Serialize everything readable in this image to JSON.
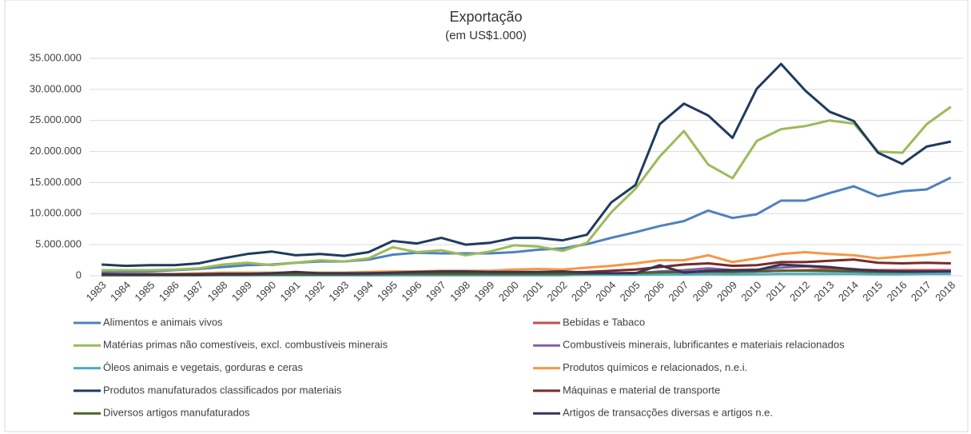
{
  "chart_data": {
    "type": "line",
    "title": "Exportação",
    "subtitle": "(em US$1.000)",
    "categories": [
      "1983",
      "1984",
      "1985",
      "1986",
      "1987",
      "1988",
      "1989",
      "1990",
      "1991",
      "1992",
      "1993",
      "1994",
      "1995",
      "1996",
      "1997",
      "1998",
      "1999",
      "2000",
      "2001",
      "2002",
      "2003",
      "2004",
      "2005",
      "2006",
      "2007",
      "2008",
      "2009",
      "2010",
      "2011",
      "2012",
      "2013",
      "2014",
      "2015",
      "2016",
      "2017",
      "2018"
    ],
    "ylim": [
      0,
      35000000
    ],
    "yticks": [
      0,
      {
        "value": 5000000,
        "label": "5.000.000"
      },
      {
        "value": 10000000,
        "label": "10.000.000"
      },
      {
        "value": 15000000,
        "label": "15.000.000"
      },
      {
        "value": 20000000,
        "label": "20.000.000"
      },
      {
        "value": 25000000,
        "label": "25.000.000"
      },
      {
        "value": 30000000,
        "label": "30.000.000"
      },
      {
        "value": 35000000,
        "label": "35.000.000"
      }
    ],
    "grid": true,
    "legend": "bottom",
    "series": [
      {
        "name": "Alimentos e animais vivos",
        "color": "#4f81bd",
        "values": [
          600000,
          600000,
          700000,
          900000,
          1100000,
          1400000,
          1700000,
          1800000,
          2100000,
          2300000,
          2300000,
          2600000,
          3400000,
          3700000,
          3600000,
          3600000,
          3600000,
          3800000,
          4200000,
          4400000,
          5100000,
          6100000,
          7000000,
          8000000,
          8800000,
          10500000,
          9300000,
          9900000,
          12100000,
          12100000,
          13300000,
          14400000,
          12800000,
          13600000,
          13900000,
          15800000
        ]
      },
      {
        "name": "Bebidas e Tabaco",
        "color": "#c0504d",
        "values": [
          150000,
          150000,
          150000,
          160000,
          180000,
          200000,
          200000,
          200000,
          250000,
          300000,
          300000,
          300000,
          350000,
          350000,
          350000,
          300000,
          300000,
          300000,
          300000,
          300000,
          300000,
          350000,
          400000,
          450000,
          500000,
          600000,
          600000,
          700000,
          800000,
          900000,
          1000000,
          1000000,
          900000,
          900000,
          900000,
          900000
        ]
      },
      {
        "name": "Matérias primas não comestíveis, excl. combustíveis minerais",
        "color": "#9bbb59",
        "values": [
          900000,
          900000,
          900000,
          1000000,
          1200000,
          1800000,
          2100000,
          1700000,
          2100000,
          2500000,
          2300000,
          2800000,
          4600000,
          3800000,
          4100000,
          3300000,
          3900000,
          4900000,
          4700000,
          4000000,
          5300000,
          10200000,
          14000000,
          19200000,
          23300000,
          17900000,
          15700000,
          21700000,
          23600000,
          24100000,
          25000000,
          24500000,
          20000000,
          19800000,
          24400000,
          27200000
        ]
      },
      {
        "name": "Combustíveis minerais, lubrificantes e materiais relacionados",
        "color": "#8064a2",
        "values": [
          100000,
          100000,
          100000,
          100000,
          100000,
          100000,
          100000,
          100000,
          100000,
          100000,
          100000,
          100000,
          100000,
          100000,
          100000,
          100000,
          100000,
          100000,
          100000,
          100000,
          200000,
          300000,
          400000,
          700000,
          900000,
          1200000,
          900000,
          1000000,
          1300000,
          1500000,
          1300000,
          1100000,
          700000,
          600000,
          700000,
          800000
        ]
      },
      {
        "name": "Óleos animais e vegetais, gorduras e ceras",
        "color": "#4bacc6",
        "values": [
          100000,
          100000,
          100000,
          100000,
          100000,
          100000,
          100000,
          100000,
          100000,
          100000,
          100000,
          100000,
          100000,
          100000,
          100000,
          100000,
          100000,
          100000,
          100000,
          100000,
          150000,
          150000,
          150000,
          200000,
          200000,
          250000,
          200000,
          250000,
          300000,
          300000,
          300000,
          300000,
          250000,
          250000,
          300000,
          300000
        ]
      },
      {
        "name": "Produtos químicos e relacionados, n.e.i.",
        "color": "#f79646",
        "values": [
          300000,
          300000,
          300000,
          300000,
          400000,
          500000,
          500000,
          500000,
          500000,
          500000,
          500000,
          600000,
          700000,
          700000,
          800000,
          800000,
          800000,
          1000000,
          1100000,
          1000000,
          1300000,
          1600000,
          2000000,
          2500000,
          2500000,
          3300000,
          2200000,
          2800000,
          3500000,
          3800000,
          3500000,
          3300000,
          2800000,
          3100000,
          3400000,
          3800000
        ]
      },
      {
        "name": "Produtos manufaturados classificados por materiais",
        "color": "#1f3b5e",
        "values": [
          1800000,
          1600000,
          1700000,
          1700000,
          2000000,
          2800000,
          3500000,
          3900000,
          3300000,
          3500000,
          3200000,
          3800000,
          5600000,
          5200000,
          6100000,
          5000000,
          5300000,
          6100000,
          6100000,
          5700000,
          6600000,
          11800000,
          14600000,
          24400000,
          27700000,
          25800000,
          22200000,
          30100000,
          34100000,
          29800000,
          26400000,
          24900000,
          19800000,
          18000000,
          20800000,
          21600000
        ]
      },
      {
        "name": "Máquinas e material de transporte",
        "color": "#772c2a",
        "values": [
          200000,
          200000,
          200000,
          200000,
          250000,
          300000,
          300000,
          300000,
          350000,
          350000,
          350000,
          400000,
          450000,
          450000,
          500000,
          500000,
          500000,
          500000,
          550000,
          550000,
          600000,
          800000,
          1000000,
          1400000,
          1800000,
          2000000,
          1600000,
          1700000,
          2200000,
          2200000,
          2400000,
          2600000,
          2100000,
          2000000,
          2100000,
          2000000
        ]
      },
      {
        "name": "Diversos artigos manufaturados",
        "color": "#4f6228",
        "values": [
          100000,
          100000,
          100000,
          100000,
          100000,
          150000,
          150000,
          200000,
          200000,
          200000,
          200000,
          250000,
          300000,
          300000,
          300000,
          300000,
          300000,
          300000,
          300000,
          300000,
          350000,
          400000,
          450000,
          550000,
          600000,
          650000,
          600000,
          700000,
          800000,
          800000,
          750000,
          700000,
          600000,
          600000,
          650000,
          700000
        ]
      },
      {
        "name": "Artigos de transacções diversas e artigos n.e.",
        "color": "#3f3151",
        "values": [
          300000,
          200000,
          200000,
          200000,
          200000,
          300000,
          300000,
          400000,
          600000,
          400000,
          400000,
          400000,
          500000,
          600000,
          700000,
          700000,
          600000,
          600000,
          600000,
          700000,
          500000,
          400000,
          400000,
          1700000,
          500000,
          800000,
          900000,
          900000,
          1800000,
          1600000,
          1400000,
          1000000,
          800000,
          700000,
          700000,
          700000
        ]
      }
    ]
  }
}
